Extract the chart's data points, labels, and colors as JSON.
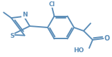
{
  "bg_color": "#ffffff",
  "line_color": "#5b8db8",
  "text_color": "#5b8db8",
  "line_width": 1.4,
  "figsize": [
    1.62,
    0.83
  ],
  "dpi": 100,
  "xlim": [
    0,
    162
  ],
  "ylim": [
    0,
    83
  ]
}
